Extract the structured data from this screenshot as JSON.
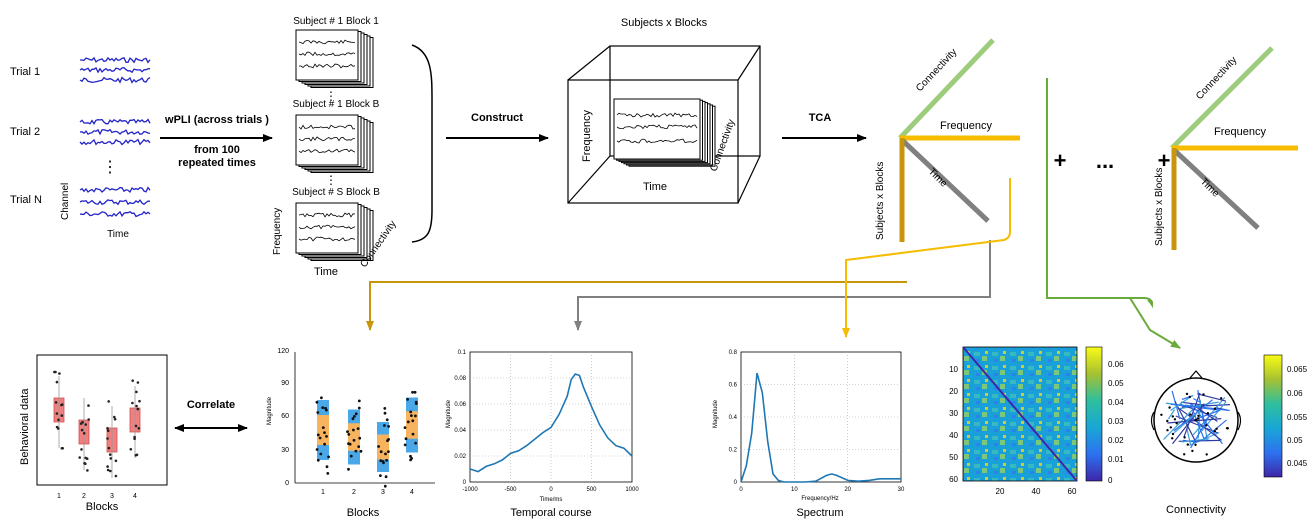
{
  "pipeline": {
    "trial_labels": [
      "Trial 1",
      "Trial 2",
      "Trial N"
    ],
    "vdots": "⋮",
    "channel_label": "Channel",
    "time_label": "Time",
    "wpli_label": "wPLI (across trials )",
    "repeat_label_1": "from 100",
    "repeat_label_2": "repeated times",
    "subject_block_titles": [
      "Subject # 1 Block 1",
      "Subject # 1 Block B",
      "Subject # S Block B"
    ],
    "frequency_label": "Frequency",
    "connectivity_label": "Connectivity",
    "construct_label": "Construct",
    "tensor_title": "Subjects x Blocks",
    "tca_label": "TCA",
    "subjects_blocks_axis": "Subjects x Blocks",
    "plus": "+",
    "ellipsis": "...",
    "colors": {
      "eeg": "#2323c8",
      "subject_axis": "#c8960a",
      "connectivity_axis": "#9dcc7c",
      "frequency_axis": "#f5bc00",
      "time_axis": "#808080",
      "plot_line": "#1f77b4"
    }
  },
  "panels": {
    "behavioral": {
      "ylabel": "Behavioral data",
      "xlabel": "Blocks",
      "ticks": [
        "1",
        "2",
        "3",
        "4"
      ],
      "color": "#f08080"
    },
    "correlate_label": "Correlate",
    "blocks_plot": {
      "ylabel": "Magnitude",
      "xlabel": "Blocks",
      "ticks_x": [
        "1",
        "2",
        "3",
        "4"
      ],
      "ticks_y": [
        "0",
        "30",
        "60",
        "90",
        "120"
      ],
      "colors": [
        "#4aa8e8",
        "#f7b35e"
      ]
    },
    "temporal": {
      "title": "Temporal course",
      "ylabel": "Magnitude",
      "xlabel": "Time/ms",
      "ticks_x": [
        "-1000",
        "-500",
        "0",
        "500",
        "1000"
      ],
      "ticks_y": [
        "0",
        "0.02",
        "0.04",
        "0.06",
        "0.08",
        "0.1"
      ]
    },
    "spectrum": {
      "title": "Spectrum",
      "ylabel": "Magnitude",
      "xlabel": "Frequency/Hz",
      "ticks_x": [
        "0",
        "10",
        "20",
        "30"
      ],
      "ticks_y": [
        "0",
        "0.2",
        "0.4",
        "0.6",
        "0.8"
      ]
    },
    "connectivity": {
      "title": "Connectivity",
      "matrix_ticks_y": [
        "10",
        "20",
        "30",
        "40",
        "50",
        "60"
      ],
      "matrix_ticks_x": [
        "20",
        "40",
        "60"
      ],
      "cbar1_ticks": [
        "0.06",
        "0.05",
        "0.04",
        "0.03",
        "0.02",
        "0.01",
        "0"
      ],
      "cbar2_ticks": [
        "0.065",
        "0.06",
        "0.055",
        "0.05",
        "0.045"
      ]
    }
  },
  "chart_data": [
    {
      "type": "line",
      "title": "Temporal course",
      "xlabel": "Time/ms",
      "ylabel": "Magnitude",
      "xlim": [
        -1000,
        1000
      ],
      "ylim": [
        0,
        0.1
      ],
      "x": [
        -1000,
        -900,
        -800,
        -700,
        -600,
        -500,
        -400,
        -300,
        -200,
        -100,
        0,
        100,
        200,
        250,
        300,
        350,
        400,
        500,
        600,
        700,
        800,
        900,
        1000
      ],
      "y": [
        0.01,
        0.008,
        0.012,
        0.014,
        0.017,
        0.022,
        0.024,
        0.028,
        0.033,
        0.038,
        0.042,
        0.052,
        0.066,
        0.079,
        0.083,
        0.082,
        0.073,
        0.058,
        0.044,
        0.034,
        0.028,
        0.026,
        0.02
      ]
    },
    {
      "type": "line",
      "title": "Spectrum",
      "xlabel": "Frequency/Hz",
      "ylabel": "Magnitude",
      "xlim": [
        0,
        30
      ],
      "ylim": [
        0,
        0.8
      ],
      "x": [
        0,
        1,
        2,
        3,
        4,
        5,
        6,
        7,
        8,
        10,
        12,
        14,
        16,
        17,
        18,
        20,
        22,
        24,
        26,
        28,
        30
      ],
      "y": [
        0.0,
        0.1,
        0.3,
        0.67,
        0.55,
        0.25,
        0.05,
        0.01,
        0.0,
        0.0,
        0.0,
        0.005,
        0.04,
        0.05,
        0.04,
        0.01,
        0.005,
        0.01,
        0.02,
        0.02,
        0.02
      ]
    }
  ]
}
